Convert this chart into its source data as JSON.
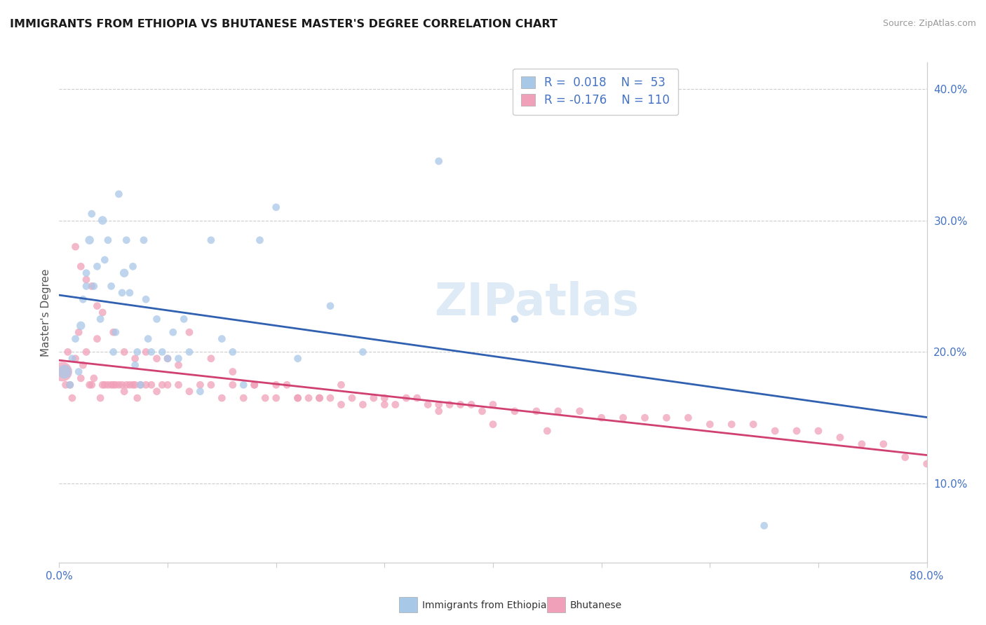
{
  "title": "IMMIGRANTS FROM ETHIOPIA VS BHUTANESE MASTER'S DEGREE CORRELATION CHART",
  "source": "Source: ZipAtlas.com",
  "ylabel": "Master's Degree",
  "ylabel_right_ticks": [
    "10.0%",
    "20.0%",
    "30.0%",
    "40.0%"
  ],
  "ylabel_right_vals": [
    0.1,
    0.2,
    0.3,
    0.4
  ],
  "xlim": [
    0.0,
    0.8
  ],
  "ylim": [
    0.04,
    0.42
  ],
  "color_blue": "#A8C8E8",
  "color_pink": "#F0A0B8",
  "color_blue_line": "#3060B0",
  "color_pink_line": "#D04070",
  "color_axis_text": "#4472C4",
  "watermark": "ZIPatlas",
  "legend_label1": "R =  0.018    N =  53",
  "legend_label2": "R = -0.176    N = 110",
  "blue_x": [
    0.005,
    0.01,
    0.012,
    0.015,
    0.018,
    0.02,
    0.022,
    0.025,
    0.025,
    0.028,
    0.03,
    0.032,
    0.035,
    0.038,
    0.04,
    0.042,
    0.045,
    0.048,
    0.05,
    0.052,
    0.055,
    0.058,
    0.06,
    0.062,
    0.065,
    0.068,
    0.07,
    0.072,
    0.075,
    0.078,
    0.08,
    0.082,
    0.085,
    0.09,
    0.095,
    0.1,
    0.105,
    0.11,
    0.115,
    0.12,
    0.13,
    0.14,
    0.15,
    0.16,
    0.17,
    0.185,
    0.2,
    0.22,
    0.25,
    0.28,
    0.35,
    0.42,
    0.65
  ],
  "blue_y": [
    0.185,
    0.175,
    0.195,
    0.21,
    0.185,
    0.22,
    0.24,
    0.26,
    0.25,
    0.285,
    0.305,
    0.25,
    0.265,
    0.225,
    0.3,
    0.27,
    0.285,
    0.25,
    0.2,
    0.215,
    0.32,
    0.245,
    0.26,
    0.285,
    0.245,
    0.265,
    0.19,
    0.2,
    0.175,
    0.285,
    0.24,
    0.21,
    0.2,
    0.225,
    0.2,
    0.195,
    0.215,
    0.195,
    0.225,
    0.2,
    0.17,
    0.285,
    0.21,
    0.2,
    0.175,
    0.285,
    0.31,
    0.195,
    0.235,
    0.2,
    0.345,
    0.225,
    0.068
  ],
  "blue_sizes": [
    200,
    60,
    60,
    60,
    60,
    80,
    60,
    60,
    60,
    80,
    60,
    60,
    60,
    60,
    80,
    60,
    60,
    60,
    60,
    60,
    60,
    60,
    80,
    60,
    60,
    60,
    60,
    60,
    60,
    60,
    60,
    60,
    60,
    60,
    60,
    60,
    60,
    60,
    60,
    60,
    60,
    60,
    60,
    60,
    60,
    60,
    60,
    60,
    60,
    60,
    60,
    60,
    60
  ],
  "pink_x": [
    0.003,
    0.006,
    0.008,
    0.01,
    0.012,
    0.015,
    0.018,
    0.02,
    0.022,
    0.025,
    0.028,
    0.03,
    0.032,
    0.035,
    0.038,
    0.04,
    0.042,
    0.045,
    0.048,
    0.05,
    0.052,
    0.055,
    0.058,
    0.06,
    0.062,
    0.065,
    0.068,
    0.07,
    0.072,
    0.075,
    0.08,
    0.085,
    0.09,
    0.095,
    0.1,
    0.11,
    0.12,
    0.13,
    0.14,
    0.15,
    0.16,
    0.17,
    0.18,
    0.19,
    0.2,
    0.21,
    0.22,
    0.23,
    0.24,
    0.25,
    0.26,
    0.27,
    0.28,
    0.29,
    0.3,
    0.31,
    0.32,
    0.33,
    0.34,
    0.35,
    0.36,
    0.37,
    0.38,
    0.39,
    0.4,
    0.42,
    0.44,
    0.46,
    0.48,
    0.5,
    0.52,
    0.54,
    0.56,
    0.58,
    0.6,
    0.62,
    0.64,
    0.66,
    0.68,
    0.7,
    0.72,
    0.74,
    0.76,
    0.78,
    0.8,
    0.015,
    0.02,
    0.025,
    0.03,
    0.035,
    0.04,
    0.05,
    0.06,
    0.07,
    0.08,
    0.09,
    0.1,
    0.11,
    0.12,
    0.14,
    0.16,
    0.18,
    0.2,
    0.22,
    0.24,
    0.26,
    0.3,
    0.35,
    0.4,
    0.45
  ],
  "pink_y": [
    0.185,
    0.175,
    0.2,
    0.175,
    0.165,
    0.195,
    0.215,
    0.18,
    0.19,
    0.2,
    0.175,
    0.175,
    0.18,
    0.21,
    0.165,
    0.175,
    0.175,
    0.175,
    0.175,
    0.175,
    0.175,
    0.175,
    0.175,
    0.17,
    0.175,
    0.175,
    0.175,
    0.175,
    0.165,
    0.175,
    0.175,
    0.175,
    0.17,
    0.175,
    0.175,
    0.175,
    0.17,
    0.175,
    0.175,
    0.165,
    0.175,
    0.165,
    0.175,
    0.165,
    0.165,
    0.175,
    0.165,
    0.165,
    0.165,
    0.165,
    0.16,
    0.165,
    0.16,
    0.165,
    0.16,
    0.16,
    0.165,
    0.165,
    0.16,
    0.16,
    0.16,
    0.16,
    0.16,
    0.155,
    0.16,
    0.155,
    0.155,
    0.155,
    0.155,
    0.15,
    0.15,
    0.15,
    0.15,
    0.15,
    0.145,
    0.145,
    0.145,
    0.14,
    0.14,
    0.14,
    0.135,
    0.13,
    0.13,
    0.12,
    0.115,
    0.28,
    0.265,
    0.255,
    0.25,
    0.235,
    0.23,
    0.215,
    0.2,
    0.195,
    0.2,
    0.195,
    0.195,
    0.19,
    0.215,
    0.195,
    0.185,
    0.175,
    0.175,
    0.165,
    0.165,
    0.175,
    0.165,
    0.155,
    0.145,
    0.14
  ],
  "pink_sizes": [
    400,
    60,
    60,
    60,
    60,
    60,
    60,
    60,
    60,
    60,
    60,
    60,
    60,
    60,
    60,
    60,
    60,
    60,
    60,
    60,
    60,
    60,
    60,
    60,
    60,
    60,
    60,
    60,
    60,
    60,
    60,
    60,
    60,
    60,
    60,
    60,
    60,
    60,
    60,
    60,
    60,
    60,
    60,
    60,
    60,
    60,
    60,
    60,
    60,
    60,
    60,
    60,
    60,
    60,
    60,
    60,
    60,
    60,
    60,
    60,
    60,
    60,
    60,
    60,
    60,
    60,
    60,
    60,
    60,
    60,
    60,
    60,
    60,
    60,
    60,
    60,
    60,
    60,
    60,
    60,
    60,
    60,
    60,
    60,
    60,
    60,
    60,
    60,
    60,
    60,
    60,
    60,
    60,
    60,
    60,
    60,
    60,
    60,
    60,
    60,
    60,
    60,
    60,
    60,
    60,
    60,
    60,
    60,
    60,
    60
  ]
}
